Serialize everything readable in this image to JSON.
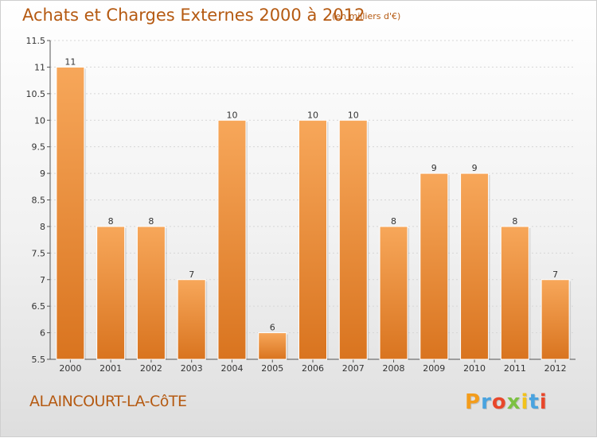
{
  "header": {
    "title": "Achats et Charges Externes 2000 à 2012",
    "subtitle": "(en milliers d'€)"
  },
  "footer": {
    "commune": "ALAINCOURT-LA-CôTE",
    "logo_letters": [
      "P",
      "r",
      "o",
      "x",
      "i",
      "t",
      "i"
    ],
    "logo_colors": [
      "#f39c1b",
      "#4aa3df",
      "#e8472b",
      "#7cc142",
      "#f2c21b",
      "#4aa3df",
      "#e8472b"
    ]
  },
  "colors": {
    "bar_light": "#f7a75a",
    "bar_dark": "#d9741f",
    "text_accent": "#b55a12"
  },
  "chart_data": {
    "type": "bar",
    "categories": [
      "2000",
      "2001",
      "2002",
      "2003",
      "2004",
      "2005",
      "2006",
      "2007",
      "2008",
      "2009",
      "2010",
      "2011",
      "2012"
    ],
    "values": [
      11,
      8,
      8,
      7,
      10,
      6,
      10,
      10,
      8,
      9,
      9,
      8,
      7
    ],
    "value_labels": [
      "11",
      "8",
      "8",
      "7",
      "10",
      "6",
      "10",
      "10",
      "8",
      "9",
      "9",
      "8",
      "7"
    ],
    "title": "Achats et Charges Externes 2000 à 2012",
    "subtitle": "(en milliers d'€)",
    "ylim": [
      5.5,
      11.5
    ],
    "yticks": [
      5.5,
      6,
      6.5,
      7,
      7.5,
      8,
      8.5,
      9,
      9.5,
      10,
      10.5,
      11,
      11.5
    ],
    "ytick_labels": [
      "5.5",
      "6",
      "6.5",
      "7",
      "7.5",
      "8",
      "8.5",
      "9",
      "9.5",
      "10",
      "10.5",
      "11",
      "11.5"
    ],
    "grid": true
  }
}
